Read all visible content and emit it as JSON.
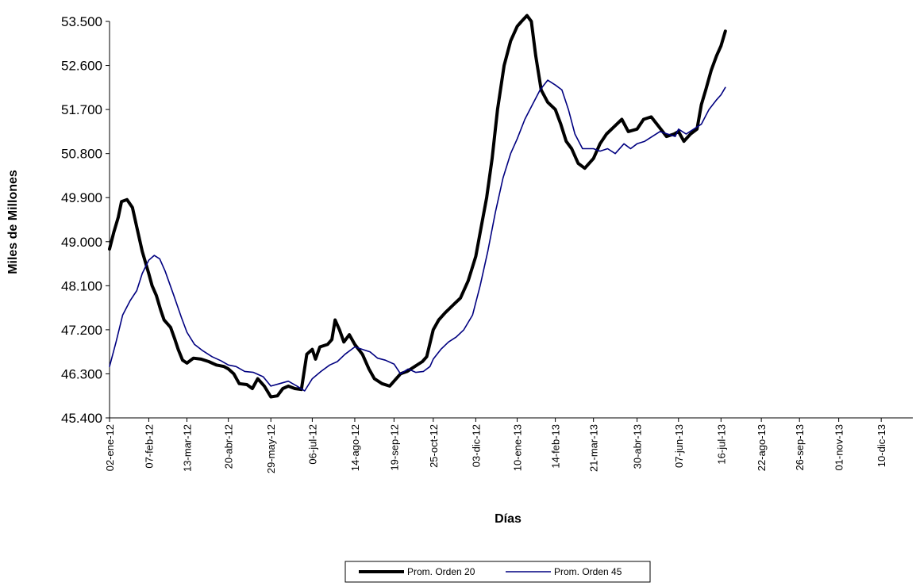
{
  "chart_data": {
    "type": "line",
    "xlabel": "Días",
    "ylabel": "Miles de Millones",
    "ylim": [
      45400,
      53500
    ],
    "yticks": [
      45400,
      46300,
      47200,
      48100,
      49000,
      49900,
      50800,
      51700,
      52600,
      53500
    ],
    "ytick_labels": [
      "45.400",
      "46.300",
      "47.200",
      "48.100",
      "49.000",
      "49.900",
      "50.800",
      "51.700",
      "52.600",
      "53.500"
    ],
    "xlim": [
      "2012-01-02",
      "2014-01-08"
    ],
    "xticks": [
      "2012-01-02",
      "2012-02-07",
      "2012-03-13",
      "2012-04-20",
      "2012-05-29",
      "2012-07-06",
      "2012-08-14",
      "2012-09-19",
      "2012-10-25",
      "2012-12-03",
      "2013-01-10",
      "2013-02-14",
      "2013-03-21",
      "2013-04-30",
      "2013-06-07",
      "2013-07-16",
      "2013-08-22",
      "2013-09-26",
      "2013-11-01",
      "2013-12-10"
    ],
    "xtick_labels": [
      "02-ene-12",
      "07-feb-12",
      "13-mar-12",
      "20-abr-12",
      "29-may-12",
      "06-jul-12",
      "14-ago-12",
      "19-sep-12",
      "25-oct-12",
      "03-dic-12",
      "10-ene-13",
      "14-feb-13",
      "21-mar-13",
      "30-abr-13",
      "07-jun-13",
      "16-jul-13",
      "22-ago-13",
      "26-sep-13",
      "01-nov-13",
      "10-dic-13"
    ],
    "grid": false,
    "legend_position": "bottom-center",
    "series": [
      {
        "name": "Prom. Orden 20",
        "color": "#000000",
        "points": [
          [
            "2012-01-02",
            48850
          ],
          [
            "2012-01-06",
            49200
          ],
          [
            "2012-01-10",
            49500
          ],
          [
            "2012-01-13",
            49820
          ],
          [
            "2012-01-18",
            49860
          ],
          [
            "2012-01-23",
            49700
          ],
          [
            "2012-01-27",
            49300
          ],
          [
            "2012-02-01",
            48800
          ],
          [
            "2012-02-07",
            48350
          ],
          [
            "2012-02-10",
            48100
          ],
          [
            "2012-02-14",
            47900
          ],
          [
            "2012-02-18",
            47600
          ],
          [
            "2012-02-21",
            47400
          ],
          [
            "2012-02-27",
            47250
          ],
          [
            "2012-03-02",
            47000
          ],
          [
            "2012-03-05",
            46800
          ],
          [
            "2012-03-09",
            46580
          ],
          [
            "2012-03-13",
            46520
          ],
          [
            "2012-03-19",
            46620
          ],
          [
            "2012-03-26",
            46600
          ],
          [
            "2012-04-02",
            46550
          ],
          [
            "2012-04-09",
            46480
          ],
          [
            "2012-04-16",
            46450
          ],
          [
            "2012-04-20",
            46400
          ],
          [
            "2012-04-25",
            46300
          ],
          [
            "2012-04-30",
            46100
          ],
          [
            "2012-05-07",
            46080
          ],
          [
            "2012-05-12",
            46000
          ],
          [
            "2012-05-17",
            46200
          ],
          [
            "2012-05-23",
            46050
          ],
          [
            "2012-05-29",
            45830
          ],
          [
            "2012-06-04",
            45850
          ],
          [
            "2012-06-09",
            46000
          ],
          [
            "2012-06-14",
            46050
          ],
          [
            "2012-06-20",
            46000
          ],
          [
            "2012-06-26",
            45980
          ],
          [
            "2012-07-01",
            46700
          ],
          [
            "2012-07-06",
            46800
          ],
          [
            "2012-07-09",
            46600
          ],
          [
            "2012-07-13",
            46850
          ],
          [
            "2012-07-20",
            46900
          ],
          [
            "2012-07-24",
            47000
          ],
          [
            "2012-07-27",
            47400
          ],
          [
            "2012-07-31",
            47200
          ],
          [
            "2012-08-04",
            46950
          ],
          [
            "2012-08-09",
            47100
          ],
          [
            "2012-08-14",
            46900
          ],
          [
            "2012-08-21",
            46700
          ],
          [
            "2012-08-27",
            46400
          ],
          [
            "2012-09-01",
            46200
          ],
          [
            "2012-09-08",
            46100
          ],
          [
            "2012-09-15",
            46050
          ],
          [
            "2012-09-19",
            46150
          ],
          [
            "2012-09-25",
            46300
          ],
          [
            "2012-10-01",
            46350
          ],
          [
            "2012-10-08",
            46450
          ],
          [
            "2012-10-15",
            46550
          ],
          [
            "2012-10-19",
            46650
          ],
          [
            "2012-10-25",
            47200
          ],
          [
            "2012-10-30",
            47400
          ],
          [
            "2012-11-05",
            47550
          ],
          [
            "2012-11-12",
            47700
          ],
          [
            "2012-11-19",
            47850
          ],
          [
            "2012-11-26",
            48200
          ],
          [
            "2012-12-03",
            48700
          ],
          [
            "2012-12-08",
            49300
          ],
          [
            "2012-12-13",
            49900
          ],
          [
            "2012-12-18",
            50700
          ],
          [
            "2012-12-23",
            51700
          ],
          [
            "2012-12-29",
            52600
          ],
          [
            "2013-01-04",
            53100
          ],
          [
            "2013-01-10",
            53400
          ],
          [
            "2013-01-14",
            53500
          ],
          [
            "2013-01-19",
            53620
          ],
          [
            "2013-01-23",
            53500
          ],
          [
            "2013-01-27",
            52800
          ],
          [
            "2013-02-01",
            52100
          ],
          [
            "2013-02-07",
            51850
          ],
          [
            "2013-02-14",
            51700
          ],
          [
            "2013-02-19",
            51400
          ],
          [
            "2013-02-24",
            51050
          ],
          [
            "2013-03-01",
            50900
          ],
          [
            "2013-03-07",
            50600
          ],
          [
            "2013-03-13",
            50500
          ],
          [
            "2013-03-21",
            50700
          ],
          [
            "2013-03-27",
            51000
          ],
          [
            "2013-04-02",
            51200
          ],
          [
            "2013-04-09",
            51350
          ],
          [
            "2013-04-16",
            51500
          ],
          [
            "2013-04-22",
            51250
          ],
          [
            "2013-04-30",
            51300
          ],
          [
            "2013-05-06",
            51500
          ],
          [
            "2013-05-13",
            51550
          ],
          [
            "2013-05-20",
            51350
          ],
          [
            "2013-05-27",
            51150
          ],
          [
            "2013-06-03",
            51200
          ],
          [
            "2013-06-07",
            51250
          ],
          [
            "2013-06-12",
            51050
          ],
          [
            "2013-06-18",
            51200
          ],
          [
            "2013-06-24",
            51300
          ],
          [
            "2013-06-28",
            51800
          ],
          [
            "2013-07-02",
            52100
          ],
          [
            "2013-07-07",
            52500
          ],
          [
            "2013-07-12",
            52800
          ],
          [
            "2013-07-16",
            53000
          ],
          [
            "2013-07-20",
            53300
          ]
        ]
      },
      {
        "name": "Prom. Orden 45",
        "color": "#000080",
        "points": [
          [
            "2012-01-02",
            46450
          ],
          [
            "2012-01-08",
            46950
          ],
          [
            "2012-01-14",
            47500
          ],
          [
            "2012-01-21",
            47800
          ],
          [
            "2012-01-27",
            48000
          ],
          [
            "2012-02-01",
            48350
          ],
          [
            "2012-02-07",
            48620
          ],
          [
            "2012-02-12",
            48720
          ],
          [
            "2012-02-17",
            48650
          ],
          [
            "2012-02-22",
            48400
          ],
          [
            "2012-03-01",
            47900
          ],
          [
            "2012-03-08",
            47450
          ],
          [
            "2012-03-13",
            47150
          ],
          [
            "2012-03-20",
            46900
          ],
          [
            "2012-03-27",
            46780
          ],
          [
            "2012-04-05",
            46650
          ],
          [
            "2012-04-13",
            46570
          ],
          [
            "2012-04-20",
            46480
          ],
          [
            "2012-04-27",
            46450
          ],
          [
            "2012-05-05",
            46350
          ],
          [
            "2012-05-13",
            46330
          ],
          [
            "2012-05-22",
            46240
          ],
          [
            "2012-05-29",
            46050
          ],
          [
            "2012-06-06",
            46100
          ],
          [
            "2012-06-14",
            46150
          ],
          [
            "2012-06-22",
            46050
          ],
          [
            "2012-06-29",
            45950
          ],
          [
            "2012-07-06",
            46200
          ],
          [
            "2012-07-14",
            46350
          ],
          [
            "2012-07-22",
            46480
          ],
          [
            "2012-07-29",
            46550
          ],
          [
            "2012-08-05",
            46700
          ],
          [
            "2012-08-14",
            46850
          ],
          [
            "2012-08-21",
            46800
          ],
          [
            "2012-08-28",
            46750
          ],
          [
            "2012-09-04",
            46620
          ],
          [
            "2012-09-11",
            46580
          ],
          [
            "2012-09-19",
            46500
          ],
          [
            "2012-09-25",
            46300
          ],
          [
            "2012-10-02",
            46400
          ],
          [
            "2012-10-09",
            46330
          ],
          [
            "2012-10-16",
            46350
          ],
          [
            "2012-10-22",
            46450
          ],
          [
            "2012-10-25",
            46600
          ],
          [
            "2012-11-01",
            46800
          ],
          [
            "2012-11-08",
            46950
          ],
          [
            "2012-11-15",
            47050
          ],
          [
            "2012-11-22",
            47200
          ],
          [
            "2012-11-30",
            47500
          ],
          [
            "2012-12-07",
            48100
          ],
          [
            "2012-12-14",
            48800
          ],
          [
            "2012-12-21",
            49600
          ],
          [
            "2012-12-28",
            50300
          ],
          [
            "2013-01-04",
            50800
          ],
          [
            "2013-01-10",
            51100
          ],
          [
            "2013-01-17",
            51500
          ],
          [
            "2013-01-24",
            51800
          ],
          [
            "2013-01-31",
            52100
          ],
          [
            "2013-02-07",
            52300
          ],
          [
            "2013-02-14",
            52200
          ],
          [
            "2013-02-20",
            52100
          ],
          [
            "2013-02-26",
            51700
          ],
          [
            "2013-03-04",
            51200
          ],
          [
            "2013-03-11",
            50900
          ],
          [
            "2013-03-21",
            50900
          ],
          [
            "2013-03-27",
            50850
          ],
          [
            "2013-04-03",
            50900
          ],
          [
            "2013-04-10",
            50800
          ],
          [
            "2013-04-18",
            51000
          ],
          [
            "2013-04-24",
            50900
          ],
          [
            "2013-04-30",
            51000
          ],
          [
            "2013-05-07",
            51050
          ],
          [
            "2013-05-14",
            51150
          ],
          [
            "2013-05-21",
            51250
          ],
          [
            "2013-05-28",
            51200
          ],
          [
            "2013-06-04",
            51150
          ],
          [
            "2013-06-07",
            51300
          ],
          [
            "2013-06-14",
            51200
          ],
          [
            "2013-06-21",
            51300
          ],
          [
            "2013-06-28",
            51400
          ],
          [
            "2013-07-05",
            51700
          ],
          [
            "2013-07-12",
            51900
          ],
          [
            "2013-07-16",
            52000
          ],
          [
            "2013-07-20",
            52150
          ]
        ]
      }
    ]
  }
}
